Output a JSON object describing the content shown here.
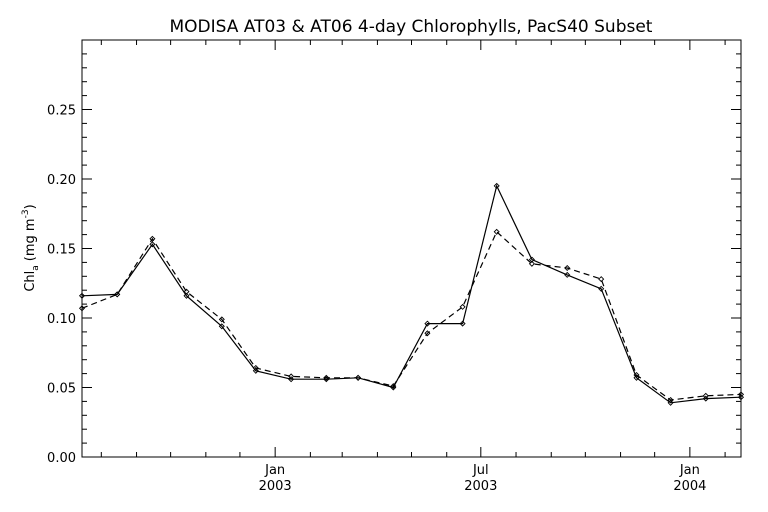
{
  "chart_data": {
    "type": "line",
    "title": "MODISA AT03 & AT06 4-day Chlorophylls, PacS40 Subset",
    "ylabel_main": "Chl",
    "ylabel_sub": "a",
    "ylabel_unit": "(mg m",
    "ylabel_exp": "-3",
    "ylabel_close": ")",
    "ylim": [
      0.0,
      0.3
    ],
    "yticks": [
      0.0,
      0.05,
      0.1,
      0.15,
      0.2,
      0.25
    ],
    "ytick_labels": [
      "0.00",
      "0.05",
      "0.10",
      "0.15",
      "0.20",
      "0.25"
    ],
    "xlim": [
      "2002-07-15",
      "2004-02-15"
    ],
    "xticks": [
      {
        "date": "2003-01-01",
        "month": "Jan",
        "year": "2003"
      },
      {
        "date": "2003-07-01",
        "month": "Jul",
        "year": "2003"
      },
      {
        "date": "2004-01-01",
        "month": "Jan",
        "year": "2004"
      }
    ],
    "series": [
      {
        "style": "solid",
        "color": "#000000",
        "points": [
          [
            "2002-07-15",
            0.116
          ],
          [
            "2002-08-15",
            0.117
          ],
          [
            "2002-09-15",
            0.153
          ],
          [
            "2002-10-15",
            0.116
          ],
          [
            "2002-11-15",
            0.094
          ],
          [
            "2002-12-15",
            0.062
          ],
          [
            "2003-01-15",
            0.056
          ],
          [
            "2003-02-15",
            0.056
          ],
          [
            "2003-03-15",
            0.057
          ],
          [
            "2003-04-15",
            0.05
          ],
          [
            "2003-05-15",
            0.096
          ],
          [
            "2003-06-15",
            0.096
          ],
          [
            "2003-07-15",
            0.195
          ],
          [
            "2003-08-15",
            0.142
          ],
          [
            "2003-09-15",
            0.131
          ],
          [
            "2003-10-15",
            0.121
          ],
          [
            "2003-11-15",
            0.057
          ],
          [
            "2003-12-15",
            0.039
          ],
          [
            "2004-01-15",
            0.042
          ],
          [
            "2004-02-15",
            0.043
          ]
        ]
      },
      {
        "style": "dashed",
        "color": "#000000",
        "points": [
          [
            "2002-07-15",
            0.107
          ],
          [
            "2002-08-15",
            0.117
          ],
          [
            "2002-09-15",
            0.157
          ],
          [
            "2002-10-15",
            0.119
          ],
          [
            "2002-11-15",
            0.099
          ],
          [
            "2002-12-15",
            0.064
          ],
          [
            "2003-01-15",
            0.058
          ],
          [
            "2003-02-15",
            0.057
          ],
          [
            "2003-03-15",
            0.057
          ],
          [
            "2003-04-15",
            0.051
          ],
          [
            "2003-05-15",
            0.089
          ],
          [
            "2003-06-15",
            0.108
          ],
          [
            "2003-07-15",
            0.162
          ],
          [
            "2003-08-15",
            0.139
          ],
          [
            "2003-09-15",
            0.136
          ],
          [
            "2003-10-15",
            0.128
          ],
          [
            "2003-11-15",
            0.059
          ],
          [
            "2003-12-15",
            0.041
          ],
          [
            "2004-01-15",
            0.044
          ],
          [
            "2004-02-15",
            0.045
          ]
        ]
      }
    ],
    "grid": false,
    "legend": "none"
  }
}
